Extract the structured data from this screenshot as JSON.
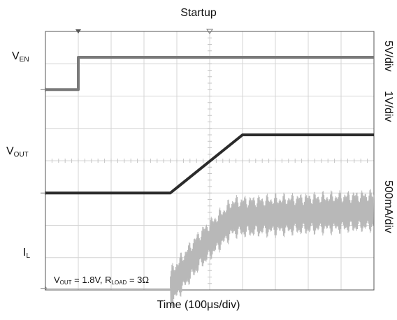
{
  "chart_data": {
    "type": "line",
    "title": "Startup",
    "xlabel": "Time (100μs/div)",
    "x_unit": "μs",
    "xlim": [
      0,
      1000
    ],
    "divisions": {
      "x": 10,
      "y": 8
    },
    "grid": true,
    "series": [
      {
        "name_main": "V",
        "name_sub": "EN",
        "scale": "5V/div",
        "color": "#7a7a7a",
        "ground_level_div": 6.2,
        "x": [
          0,
          100,
          100,
          1000
        ],
        "y": [
          0,
          0,
          5,
          5
        ]
      },
      {
        "name_main": "V",
        "name_sub": "OUT",
        "scale": "1V/div",
        "color": "#2b2b2b",
        "ground_level_div": 3.0,
        "x": [
          0,
          380,
          600,
          1000
        ],
        "y": [
          0,
          0,
          1.8,
          1.8
        ]
      },
      {
        "name_main": "I",
        "name_sub": "L",
        "scale": "500mA/div",
        "color": "#b8b8b8",
        "ground_level_div": 0.05,
        "x": [
          0,
          380,
          470,
          570,
          1000
        ],
        "y": [
          0,
          0,
          0.6,
          1.1,
          1.2
        ],
        "ripple_a": 0.35
      }
    ],
    "annotation": {
      "vout_main": "V",
      "vout_sub": "OUT",
      "vout_value": " = 1.8V, ",
      "rload_main": "R",
      "rload_sub": "LOAD",
      "rload_value": " = 3Ω"
    }
  }
}
